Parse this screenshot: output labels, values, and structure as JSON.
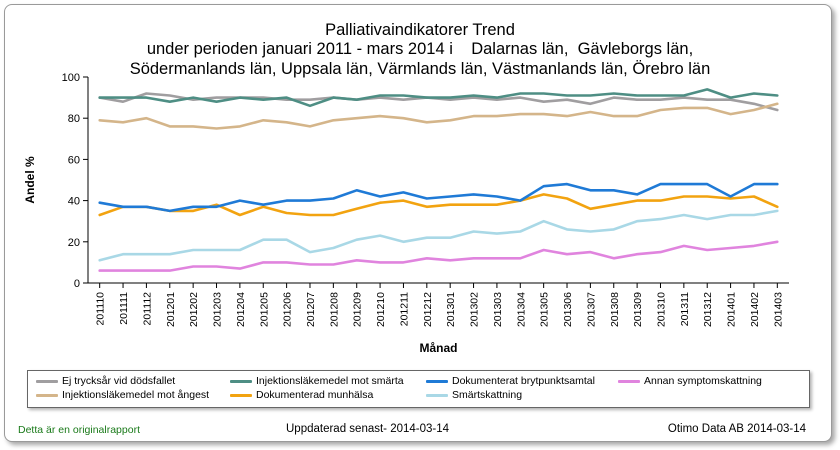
{
  "title_lines": [
    "Palliativaindikatorer Trend",
    "under perioden januari 2011 - mars 2014 i    Dalarnas län,  Gävleborgs län,",
    "Södermanlands län,  Uppsala län,  Värmlands län,  Västmanlands län,  Örebro län"
  ],
  "chart_data": {
    "type": "line",
    "xlabel": "Månad",
    "ylabel": "Andel %",
    "ylim": [
      0,
      100
    ],
    "yticks": [
      0,
      20,
      40,
      60,
      80,
      100
    ],
    "grid": false,
    "legend_position": "bottom",
    "x": [
      "201110",
      "201111",
      "201112",
      "201201",
      "201202",
      "201203",
      "201204",
      "201205",
      "201206",
      "201207",
      "201208",
      "201209",
      "201210",
      "201211",
      "201212",
      "201301",
      "201302",
      "201303",
      "201304",
      "201305",
      "201306",
      "201307",
      "201308",
      "201309",
      "201310",
      "201311",
      "201312",
      "201401",
      "201402",
      "201403"
    ],
    "series": [
      {
        "name": "Ej trycksår vid dödsfallet",
        "color": "#a09ea0",
        "values": [
          90,
          88,
          92,
          91,
          89,
          90,
          90,
          90,
          89,
          89,
          90,
          89,
          90,
          89,
          90,
          89,
          90,
          89,
          90,
          88,
          89,
          87,
          90,
          89,
          89,
          90,
          89,
          89,
          87,
          84
        ]
      },
      {
        "name": "Injektionsläkemedel mot ångest",
        "color": "#d4b58a",
        "values": [
          79,
          78,
          80,
          76,
          76,
          75,
          76,
          79,
          78,
          76,
          79,
          80,
          81,
          80,
          78,
          79,
          81,
          81,
          82,
          82,
          81,
          83,
          81,
          81,
          84,
          85,
          85,
          82,
          84,
          87
        ]
      },
      {
        "name": "Injektionsläkemedel mot smärta",
        "color": "#4e8e84",
        "values": [
          90,
          90,
          90,
          88,
          90,
          88,
          90,
          89,
          90,
          86,
          90,
          89,
          91,
          91,
          90,
          90,
          91,
          90,
          92,
          92,
          91,
          91,
          92,
          91,
          91,
          91,
          94,
          90,
          92,
          91
        ]
      },
      {
        "name": "Dokumenterad munhälsa",
        "color": "#f2a310",
        "values": [
          33,
          37,
          37,
          35,
          35,
          38,
          33,
          37,
          34,
          33,
          33,
          36,
          39,
          40,
          37,
          38,
          38,
          38,
          40,
          43,
          41,
          36,
          38,
          40,
          40,
          42,
          42,
          41,
          42,
          37
        ]
      },
      {
        "name": "Dokumenterat brytpunktsamtal",
        "color": "#1f7ad6",
        "values": [
          39,
          37,
          37,
          35,
          37,
          37,
          40,
          38,
          40,
          40,
          41,
          45,
          42,
          44,
          41,
          42,
          43,
          42,
          40,
          47,
          48,
          45,
          45,
          43,
          48,
          48,
          48,
          42,
          48,
          48
        ]
      },
      {
        "name": "Smärtskattning",
        "color": "#a9d8e6",
        "values": [
          11,
          14,
          14,
          14,
          16,
          16,
          16,
          21,
          21,
          15,
          17,
          21,
          23,
          20,
          22,
          22,
          25,
          24,
          25,
          30,
          26,
          25,
          26,
          30,
          31,
          33,
          31,
          33,
          33,
          35
        ]
      },
      {
        "name": "Annan symptomskattning",
        "color": "#e084de",
        "values": [
          6,
          6,
          6,
          6,
          8,
          8,
          7,
          10,
          10,
          9,
          9,
          11,
          10,
          10,
          12,
          11,
          12,
          12,
          12,
          16,
          14,
          15,
          12,
          14,
          15,
          18,
          16,
          17,
          18,
          20
        ]
      }
    ]
  },
  "footer": {
    "left": "Detta är en originalrapport",
    "middle": "Uppdaterad senast- 2014-03-14",
    "right": "Otimo Data AB 2014-03-14"
  }
}
